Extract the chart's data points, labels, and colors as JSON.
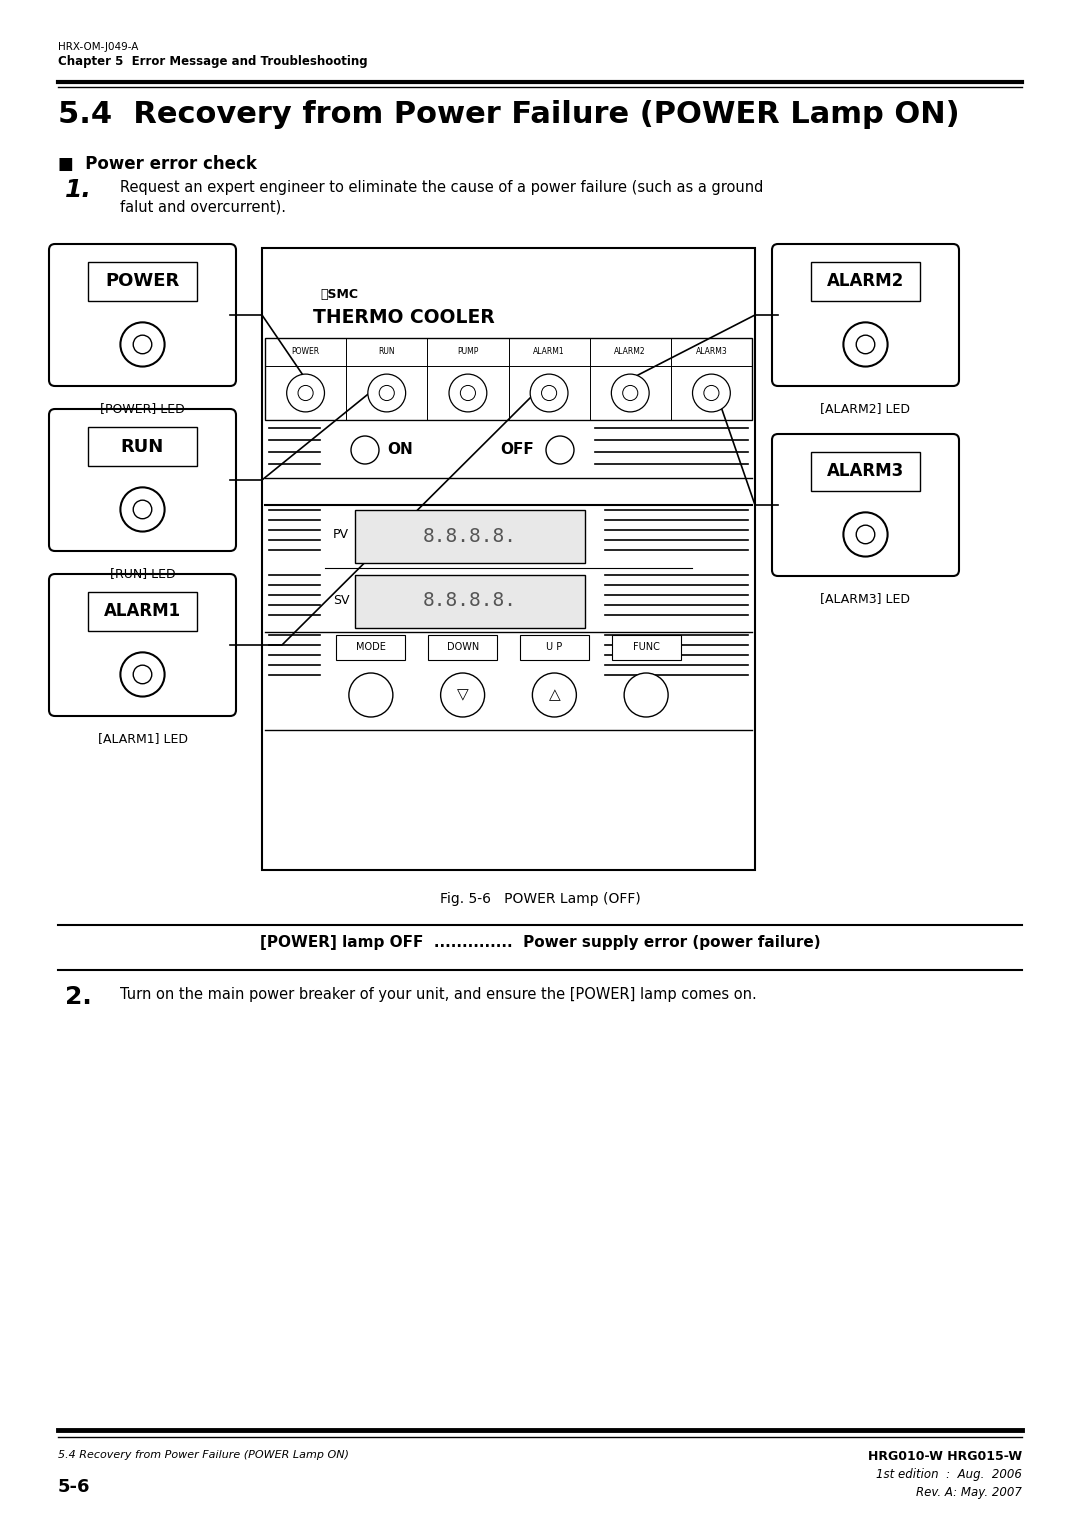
{
  "page_width": 10.8,
  "page_height": 15.27,
  "bg_color": "#ffffff",
  "header_line1": "HRX-OM-J049-A",
  "header_line2": "Chapter 5  Error Message and Troubleshooting",
  "section_title": "5.4  Recovery from Power Failure (POWER Lamp ON)",
  "subsection": "■  Power error check",
  "step1_number": "1.",
  "step1_text_line1": "Request an expert engineer to eliminate the cause of a power failure (such as a ground",
  "step1_text_line2": "falut and overcurrent).",
  "fig_caption": "Fig. 5-6   POWER Lamp (OFF)",
  "indicator_line": "[POWER] lamp OFF  ..............  Power supply error (power failure)",
  "step2_number": "2.",
  "step2_text": "Turn on the main power breaker of your unit, and ensure the [POWER] lamp comes on.",
  "footer_left_line1": "5.4 Recovery from Power Failure (POWER Lamp ON)",
  "footer_left_line2": "5-6",
  "footer_right_line1": "HRG010-W HRG015-W",
  "footer_right_line2": "1st edition  :  Aug.  2006",
  "footer_right_line3": "Rev. A: May. 2007"
}
